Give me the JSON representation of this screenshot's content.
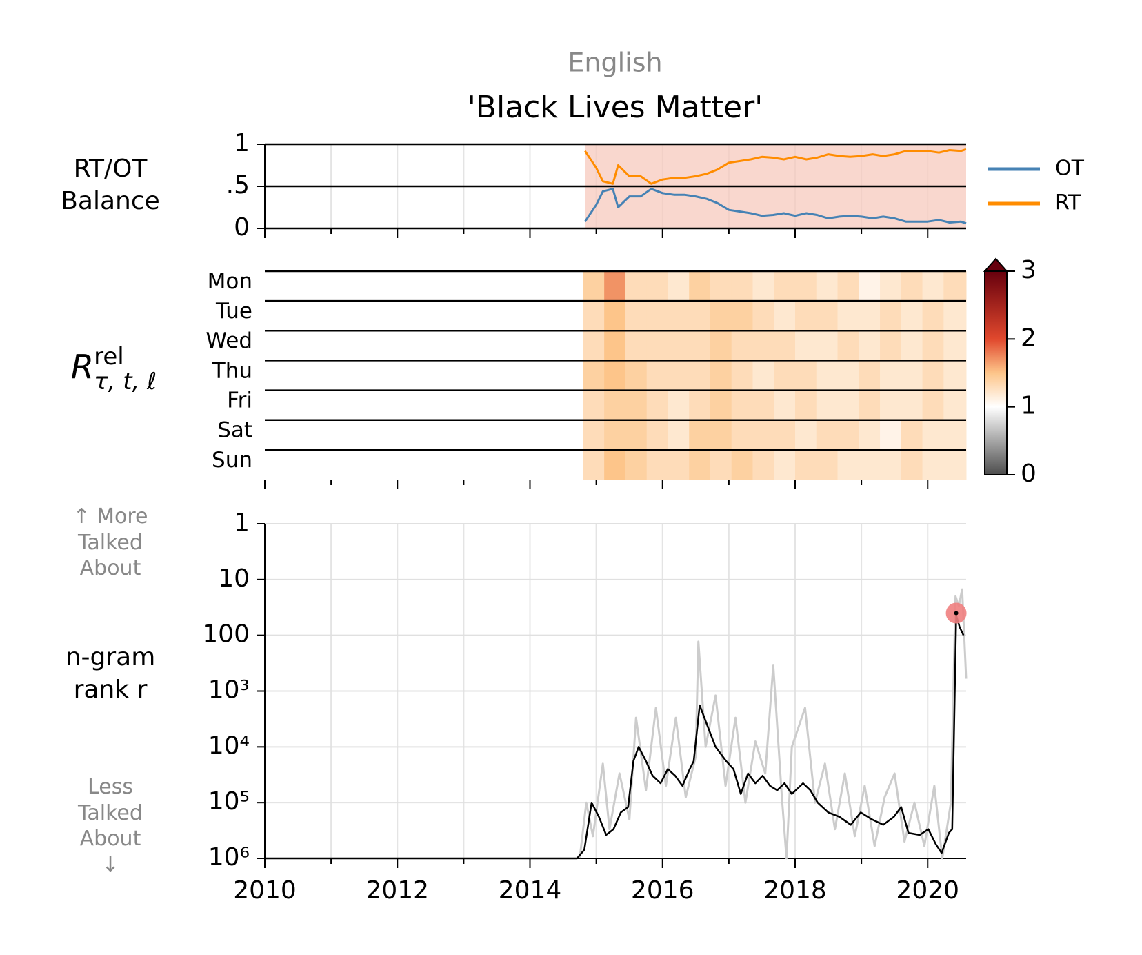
{
  "header": {
    "language": "English",
    "title": "'Black Lives Matter'"
  },
  "chart_data": [
    {
      "type": "line",
      "ylabel": "RT/OT Balance",
      "xlim": [
        2010,
        2020.58
      ],
      "ylim": [
        0,
        1
      ],
      "yticks": [
        0,
        {
          "value": 0.5,
          "label": ".5"
        },
        1
      ],
      "grid": true,
      "legend": "right",
      "x": [
        2014.83,
        2015.0,
        2015.1,
        2015.25,
        2015.33,
        2015.5,
        2015.67,
        2015.83,
        2016.0,
        2016.17,
        2016.33,
        2016.5,
        2016.67,
        2016.83,
        2017.0,
        2017.17,
        2017.33,
        2017.5,
        2017.67,
        2017.83,
        2018.0,
        2018.17,
        2018.33,
        2018.5,
        2018.67,
        2018.83,
        2019.0,
        2019.17,
        2019.33,
        2019.5,
        2019.67,
        2019.83,
        2020.0,
        2020.17,
        2020.33,
        2020.5,
        2020.58
      ],
      "series": [
        {
          "name": "OT",
          "color": "#4682b4",
          "values": [
            0.08,
            0.28,
            0.44,
            0.47,
            0.25,
            0.38,
            0.38,
            0.47,
            0.42,
            0.4,
            0.4,
            0.38,
            0.35,
            0.3,
            0.22,
            0.2,
            0.18,
            0.15,
            0.16,
            0.18,
            0.15,
            0.18,
            0.16,
            0.12,
            0.14,
            0.15,
            0.14,
            0.12,
            0.14,
            0.12,
            0.08,
            0.08,
            0.08,
            0.1,
            0.07,
            0.08,
            0.06
          ]
        },
        {
          "name": "RT",
          "color": "#ff8c00",
          "values": [
            0.92,
            0.72,
            0.56,
            0.53,
            0.75,
            0.62,
            0.62,
            0.53,
            0.58,
            0.6,
            0.6,
            0.62,
            0.65,
            0.7,
            0.78,
            0.8,
            0.82,
            0.85,
            0.84,
            0.82,
            0.85,
            0.82,
            0.84,
            0.88,
            0.86,
            0.85,
            0.86,
            0.88,
            0.86,
            0.88,
            0.92,
            0.92,
            0.92,
            0.9,
            0.93,
            0.92,
            0.94
          ]
        }
      ]
    },
    {
      "type": "heatmap",
      "ylabel": {
        "main": "R",
        "sup": "rel",
        "sub": "τ, t, ℓ"
      },
      "xlim": [
        2010,
        2020.58
      ],
      "categories": [
        "Mon",
        "Tue",
        "Wed",
        "Thu",
        "Fri",
        "Sat",
        "Sun"
      ],
      "x": [
        2014.8,
        2015.12,
        2015.44,
        2015.76,
        2016.08,
        2016.4,
        2016.72,
        2017.04,
        2017.36,
        2017.68,
        2018.0,
        2018.32,
        2018.64,
        2018.96,
        2019.28,
        2019.6,
        2019.92,
        2020.24
      ],
      "values": [
        [
          1.4,
          1.7,
          1.3,
          1.3,
          1.2,
          1.4,
          1.3,
          1.3,
          1.2,
          1.3,
          1.3,
          1.2,
          1.3,
          1.1,
          1.2,
          1.3,
          1.2,
          1.3
        ],
        [
          1.3,
          1.5,
          1.3,
          1.3,
          1.3,
          1.3,
          1.4,
          1.4,
          1.3,
          1.2,
          1.3,
          1.3,
          1.2,
          1.2,
          1.3,
          1.2,
          1.3,
          1.2
        ],
        [
          1.3,
          1.5,
          1.3,
          1.3,
          1.3,
          1.3,
          1.4,
          1.3,
          1.3,
          1.3,
          1.2,
          1.2,
          1.3,
          1.2,
          1.3,
          1.2,
          1.3,
          1.2
        ],
        [
          1.4,
          1.5,
          1.4,
          1.3,
          1.3,
          1.3,
          1.4,
          1.3,
          1.2,
          1.3,
          1.3,
          1.2,
          1.2,
          1.3,
          1.2,
          1.2,
          1.3,
          1.2
        ],
        [
          1.3,
          1.4,
          1.4,
          1.3,
          1.2,
          1.3,
          1.4,
          1.3,
          1.3,
          1.2,
          1.3,
          1.2,
          1.2,
          1.3,
          1.2,
          1.2,
          1.3,
          1.2
        ],
        [
          1.3,
          1.4,
          1.4,
          1.3,
          1.2,
          1.4,
          1.4,
          1.3,
          1.3,
          1.3,
          1.2,
          1.3,
          1.3,
          1.2,
          1.1,
          1.3,
          1.2,
          1.2
        ],
        [
          1.3,
          1.5,
          1.4,
          1.3,
          1.3,
          1.4,
          1.3,
          1.4,
          1.3,
          1.2,
          1.3,
          1.3,
          1.2,
          1.2,
          1.2,
          1.3,
          1.2,
          1.2
        ]
      ],
      "clim": [
        0,
        3
      ],
      "cticks": [
        0,
        1,
        2,
        3
      ],
      "colorscale": [
        [
          0,
          "#4d4d4d"
        ],
        [
          1,
          "#ffffff"
        ],
        [
          1.5,
          "#fdc58a"
        ],
        [
          2,
          "#e0482d"
        ],
        [
          3,
          "#67000d"
        ]
      ]
    },
    {
      "type": "line",
      "ylabel": "n-gram rank r",
      "top_note": "↑ More Talked About",
      "bottom_note": "Less Talked About ↓",
      "xlim": [
        2010,
        2020.58
      ],
      "xticks": [
        2010,
        2012,
        2014,
        2016,
        2018,
        2020
      ],
      "xminorticks": [
        2011,
        2013,
        2015,
        2017,
        2019
      ],
      "ylim": [
        1,
        1000000
      ],
      "log": true,
      "invert": true,
      "grid": true,
      "yticks": [
        1,
        10,
        100,
        {
          "value": 1000,
          "label": "10³"
        },
        {
          "value": 10000,
          "label": "10⁴"
        },
        {
          "value": 100000,
          "label": "10⁵"
        },
        {
          "value": 1000000,
          "label": "10⁶"
        }
      ],
      "series": [
        {
          "color": "#cccccc",
          "x": [
            2014.75,
            2014.85,
            2014.95,
            2015.1,
            2015.2,
            2015.35,
            2015.5,
            2015.6,
            2015.75,
            2015.9,
            2016.05,
            2016.2,
            2016.35,
            2016.5,
            2016.54,
            2016.65,
            2016.8,
            2016.95,
            2017.1,
            2017.25,
            2017.4,
            2017.55,
            2017.67,
            2017.8,
            2017.87,
            2017.95,
            2018.15,
            2018.3,
            2018.45,
            2018.6,
            2018.75,
            2018.9,
            2019.05,
            2019.2,
            2019.35,
            2019.5,
            2019.65,
            2019.8,
            2019.95,
            2020.1,
            2020.22,
            2020.35,
            2020.42,
            2020.47,
            2020.52,
            2020.58
          ],
          "values": [
            1000000,
            100000,
            400000,
            20000,
            300000,
            30000,
            200000,
            3000,
            60000,
            2000,
            50000,
            3000,
            80000,
            15000,
            130,
            10000,
            1200,
            50000,
            3000,
            100000,
            8000,
            30000,
            350,
            80000,
            1000000,
            10000,
            2000,
            100000,
            20000,
            300000,
            30000,
            400000,
            50000,
            600000,
            80000,
            30000,
            500000,
            100000,
            600000,
            50000,
            1000000,
            100000,
            20,
            30,
            15,
            600
          ]
        },
        {
          "color": "#000000",
          "x": [
            2010,
            2014.6,
            2014.71,
            2014.82,
            2014.93,
            2015.04,
            2015.15,
            2015.26,
            2015.37,
            2015.48,
            2015.56,
            2015.64,
            2015.75,
            2015.85,
            2015.97,
            2016.08,
            2016.19,
            2016.3,
            2016.41,
            2016.47,
            2016.56,
            2016.67,
            2016.8,
            2016.96,
            2017.07,
            2017.18,
            2017.29,
            2017.4,
            2017.51,
            2017.62,
            2017.73,
            2017.84,
            2017.95,
            2018.12,
            2018.23,
            2018.34,
            2018.5,
            2018.67,
            2018.84,
            2018.99,
            2019.16,
            2019.33,
            2019.49,
            2019.6,
            2019.71,
            2019.88,
            2020.01,
            2020.12,
            2020.21,
            2020.32,
            2020.37,
            2020.43,
            2020.48,
            2020.54
          ],
          "values": [
            1000000,
            1000000,
            1000000,
            700000,
            100000,
            180000,
            380000,
            300000,
            150000,
            120000,
            18000,
            10000,
            18000,
            33000,
            45000,
            25000,
            33000,
            50000,
            25000,
            18000,
            1800,
            4000,
            10000,
            18000,
            25000,
            70000,
            30000,
            45000,
            33000,
            50000,
            60000,
            45000,
            70000,
            45000,
            60000,
            100000,
            150000,
            180000,
            250000,
            150000,
            200000,
            250000,
            180000,
            120000,
            350000,
            380000,
            300000,
            550000,
            800000,
            350000,
            300000,
            44,
            70,
            100
          ]
        }
      ],
      "peak": {
        "x": 2020.43,
        "value": 40,
        "color": "#f08080"
      }
    }
  ]
}
